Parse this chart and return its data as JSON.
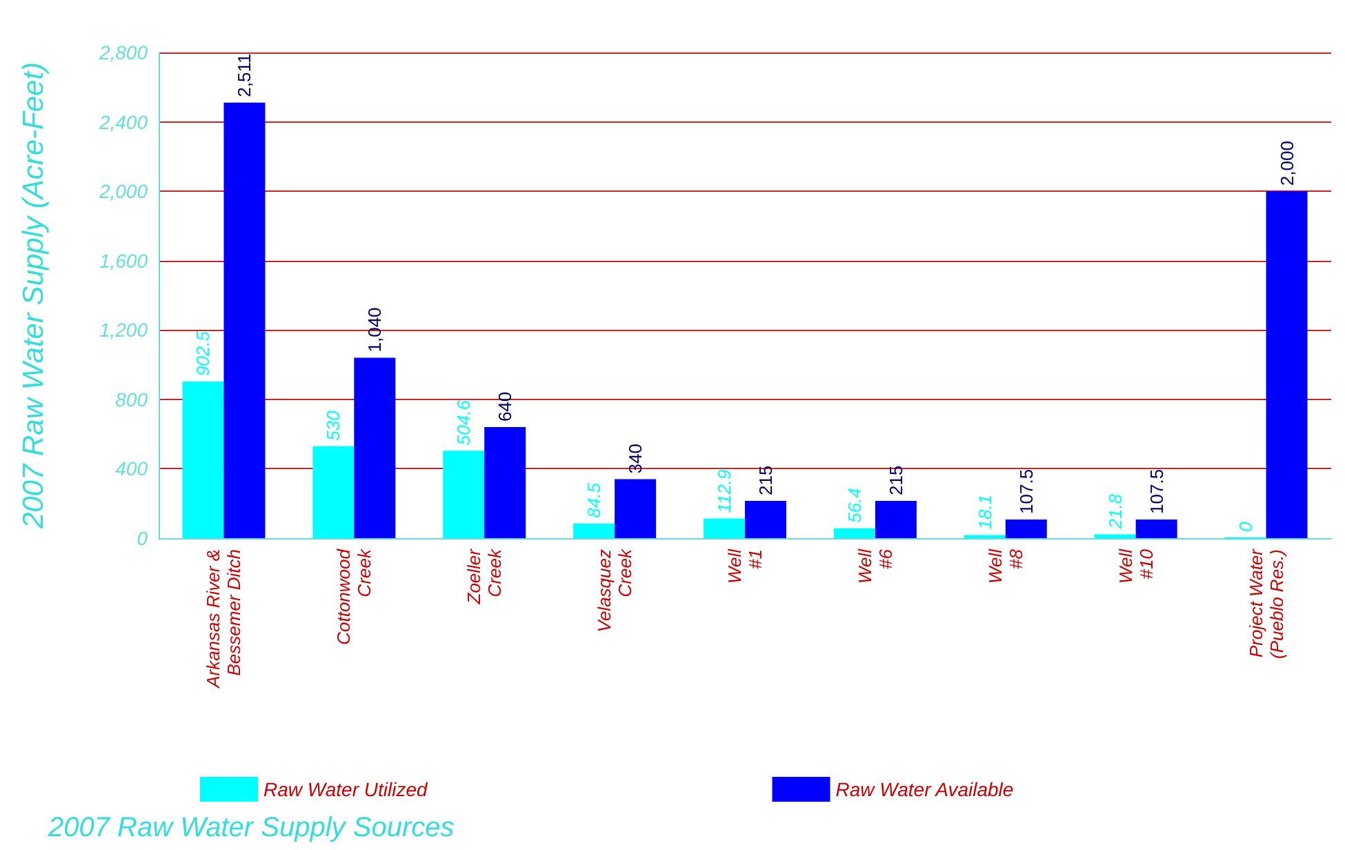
{
  "chart_data": {
    "type": "bar",
    "xlabel": "2007 Raw Water Supply Sources",
    "ylabel": "2007 Raw Water Supply (Acre-Feet)",
    "categories": [
      "Arkansas River &\nBessemer Ditch",
      "Cottonwood\nCreek",
      "Zoeller\nCreek",
      "Velasquez\nCreek",
      "Well\n#1",
      "Well\n#6",
      "Well\n#8",
      "Well\n#10",
      "Project Water\n(Pueblo Res.)"
    ],
    "series": [
      {
        "name": "Raw Water Utilized",
        "color": "#00ffff",
        "values": [
          902.5,
          530,
          504.6,
          84.5,
          112.9,
          56.4,
          18.1,
          21.8,
          0
        ],
        "value_labels": [
          "902.5",
          "530",
          "504.6",
          "84.5",
          "112.9",
          "56.4",
          "18.1",
          "21.8",
          "0"
        ]
      },
      {
        "name": "Raw Water Available",
        "color": "#0000ff",
        "values": [
          2511,
          1040,
          640,
          340,
          215,
          215,
          107.5,
          107.5,
          2000
        ],
        "value_labels": [
          "2,511",
          "1,040",
          "640",
          "340",
          "215",
          "215",
          "107.5",
          "107.5",
          "2,000"
        ]
      }
    ],
    "ylim": [
      0,
      2800
    ],
    "yticks": [
      {
        "value": 0,
        "label": "0"
      },
      {
        "value": 400,
        "label": "400"
      },
      {
        "value": 800,
        "label": "800"
      },
      {
        "value": 1200,
        "label": "1,200"
      },
      {
        "value": 1600,
        "label": "1,600"
      },
      {
        "value": 2000,
        "label": "2,000"
      },
      {
        "value": 2400,
        "label": "2,400"
      },
      {
        "value": 2800,
        "label": "2,800"
      }
    ],
    "grid": "y",
    "legend": "bottom"
  }
}
